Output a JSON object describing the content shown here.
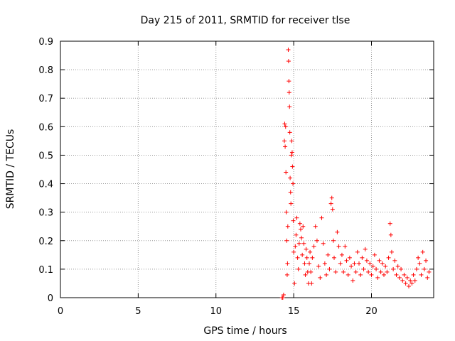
{
  "chart_data": {
    "type": "scatter",
    "title": "Day 215 of 2011, SRMTID for receiver tlse",
    "xlabel": "GPS time / hours",
    "ylabel": "SRMTID / TECUs",
    "xlim": [
      0,
      24
    ],
    "ylim": [
      0,
      0.9
    ],
    "xticks": [
      "0",
      "5",
      "10",
      "15",
      "20"
    ],
    "xtick_values": [
      0,
      5,
      10,
      15,
      20
    ],
    "yticks": [
      "0",
      "0.1",
      "0.2",
      "0.3",
      "0.4",
      "0.5",
      "0.6",
      "0.7",
      "0.8",
      "0.9"
    ],
    "ytick_values": [
      0,
      0.1,
      0.2,
      0.3,
      0.4,
      0.5,
      0.6,
      0.7,
      0.8,
      0.9
    ],
    "grid": true,
    "marker": "+",
    "color": "#ff0000",
    "series": [
      {
        "name": "SRMTID",
        "points": [
          [
            14.25,
            0.0
          ],
          [
            14.3,
            0.0
          ],
          [
            14.35,
            0.01
          ],
          [
            14.4,
            0.55
          ],
          [
            14.42,
            0.61
          ],
          [
            14.45,
            0.53
          ],
          [
            14.48,
            0.6
          ],
          [
            14.5,
            0.44
          ],
          [
            14.52,
            0.3
          ],
          [
            14.55,
            0.2
          ],
          [
            14.58,
            0.08
          ],
          [
            14.6,
            0.12
          ],
          [
            14.62,
            0.25
          ],
          [
            14.65,
            0.87
          ],
          [
            14.67,
            0.83
          ],
          [
            14.69,
            0.76
          ],
          [
            14.71,
            0.72
          ],
          [
            14.73,
            0.67
          ],
          [
            14.75,
            0.58
          ],
          [
            14.77,
            0.42
          ],
          [
            14.8,
            0.37
          ],
          [
            14.82,
            0.33
          ],
          [
            14.85,
            0.5
          ],
          [
            14.87,
            0.55
          ],
          [
            14.9,
            0.51
          ],
          [
            14.92,
            0.46
          ],
          [
            14.95,
            0.4
          ],
          [
            14.97,
            0.27
          ],
          [
            15.0,
            0.16
          ],
          [
            15.05,
            0.05
          ],
          [
            15.1,
            0.18
          ],
          [
            15.15,
            0.22
          ],
          [
            15.2,
            0.28
          ],
          [
            15.25,
            0.14
          ],
          [
            15.3,
            0.1
          ],
          [
            15.35,
            0.19
          ],
          [
            15.4,
            0.26
          ],
          [
            15.45,
            0.24
          ],
          [
            15.5,
            0.21
          ],
          [
            15.55,
            0.15
          ],
          [
            15.6,
            0.25
          ],
          [
            15.65,
            0.19
          ],
          [
            15.7,
            0.12
          ],
          [
            15.75,
            0.08
          ],
          [
            15.8,
            0.17
          ],
          [
            15.85,
            0.14
          ],
          [
            15.9,
            0.09
          ],
          [
            15.95,
            0.05
          ],
          [
            16.0,
            0.12
          ],
          [
            16.05,
            0.16
          ],
          [
            16.1,
            0.09
          ],
          [
            16.15,
            0.05
          ],
          [
            16.2,
            0.14
          ],
          [
            16.3,
            0.18
          ],
          [
            16.4,
            0.25
          ],
          [
            16.5,
            0.2
          ],
          [
            16.6,
            0.11
          ],
          [
            16.7,
            0.07
          ],
          [
            16.8,
            0.28
          ],
          [
            16.9,
            0.19
          ],
          [
            17.0,
            0.12
          ],
          [
            17.1,
            0.08
          ],
          [
            17.2,
            0.15
          ],
          [
            17.3,
            0.1
          ],
          [
            17.4,
            0.33
          ],
          [
            17.45,
            0.35
          ],
          [
            17.5,
            0.31
          ],
          [
            17.55,
            0.2
          ],
          [
            17.6,
            0.14
          ],
          [
            17.7,
            0.09
          ],
          [
            17.8,
            0.23
          ],
          [
            17.9,
            0.18
          ],
          [
            18.0,
            0.12
          ],
          [
            18.1,
            0.15
          ],
          [
            18.2,
            0.09
          ],
          [
            18.3,
            0.18
          ],
          [
            18.4,
            0.13
          ],
          [
            18.5,
            0.08
          ],
          [
            18.6,
            0.14
          ],
          [
            18.7,
            0.11
          ],
          [
            18.8,
            0.06
          ],
          [
            18.9,
            0.12
          ],
          [
            19.0,
            0.09
          ],
          [
            19.1,
            0.16
          ],
          [
            19.2,
            0.12
          ],
          [
            19.3,
            0.08
          ],
          [
            19.4,
            0.14
          ],
          [
            19.5,
            0.1
          ],
          [
            19.6,
            0.17
          ],
          [
            19.7,
            0.13
          ],
          [
            19.8,
            0.09
          ],
          [
            19.9,
            0.12
          ],
          [
            20.0,
            0.08
          ],
          [
            20.1,
            0.11
          ],
          [
            20.2,
            0.15
          ],
          [
            20.3,
            0.1
          ],
          [
            20.4,
            0.07
          ],
          [
            20.5,
            0.13
          ],
          [
            20.6,
            0.09
          ],
          [
            20.7,
            0.12
          ],
          [
            20.8,
            0.08
          ],
          [
            20.9,
            0.11
          ],
          [
            21.0,
            0.09
          ],
          [
            21.1,
            0.14
          ],
          [
            21.2,
            0.26
          ],
          [
            21.25,
            0.22
          ],
          [
            21.3,
            0.16
          ],
          [
            21.4,
            0.1
          ],
          [
            21.5,
            0.13
          ],
          [
            21.6,
            0.08
          ],
          [
            21.7,
            0.11
          ],
          [
            21.8,
            0.07
          ],
          [
            21.9,
            0.1
          ],
          [
            22.0,
            0.06
          ],
          [
            22.1,
            0.08
          ],
          [
            22.2,
            0.05
          ],
          [
            22.3,
            0.07
          ],
          [
            22.4,
            0.04
          ],
          [
            22.5,
            0.06
          ],
          [
            22.6,
            0.05
          ],
          [
            22.7,
            0.08
          ],
          [
            22.8,
            0.06
          ],
          [
            22.9,
            0.1
          ],
          [
            23.0,
            0.14
          ],
          [
            23.1,
            0.12
          ],
          [
            23.2,
            0.08
          ],
          [
            23.3,
            0.16
          ],
          [
            23.4,
            0.1
          ],
          [
            23.5,
            0.13
          ],
          [
            23.6,
            0.07
          ],
          [
            23.7,
            0.09
          ]
        ]
      }
    ]
  }
}
